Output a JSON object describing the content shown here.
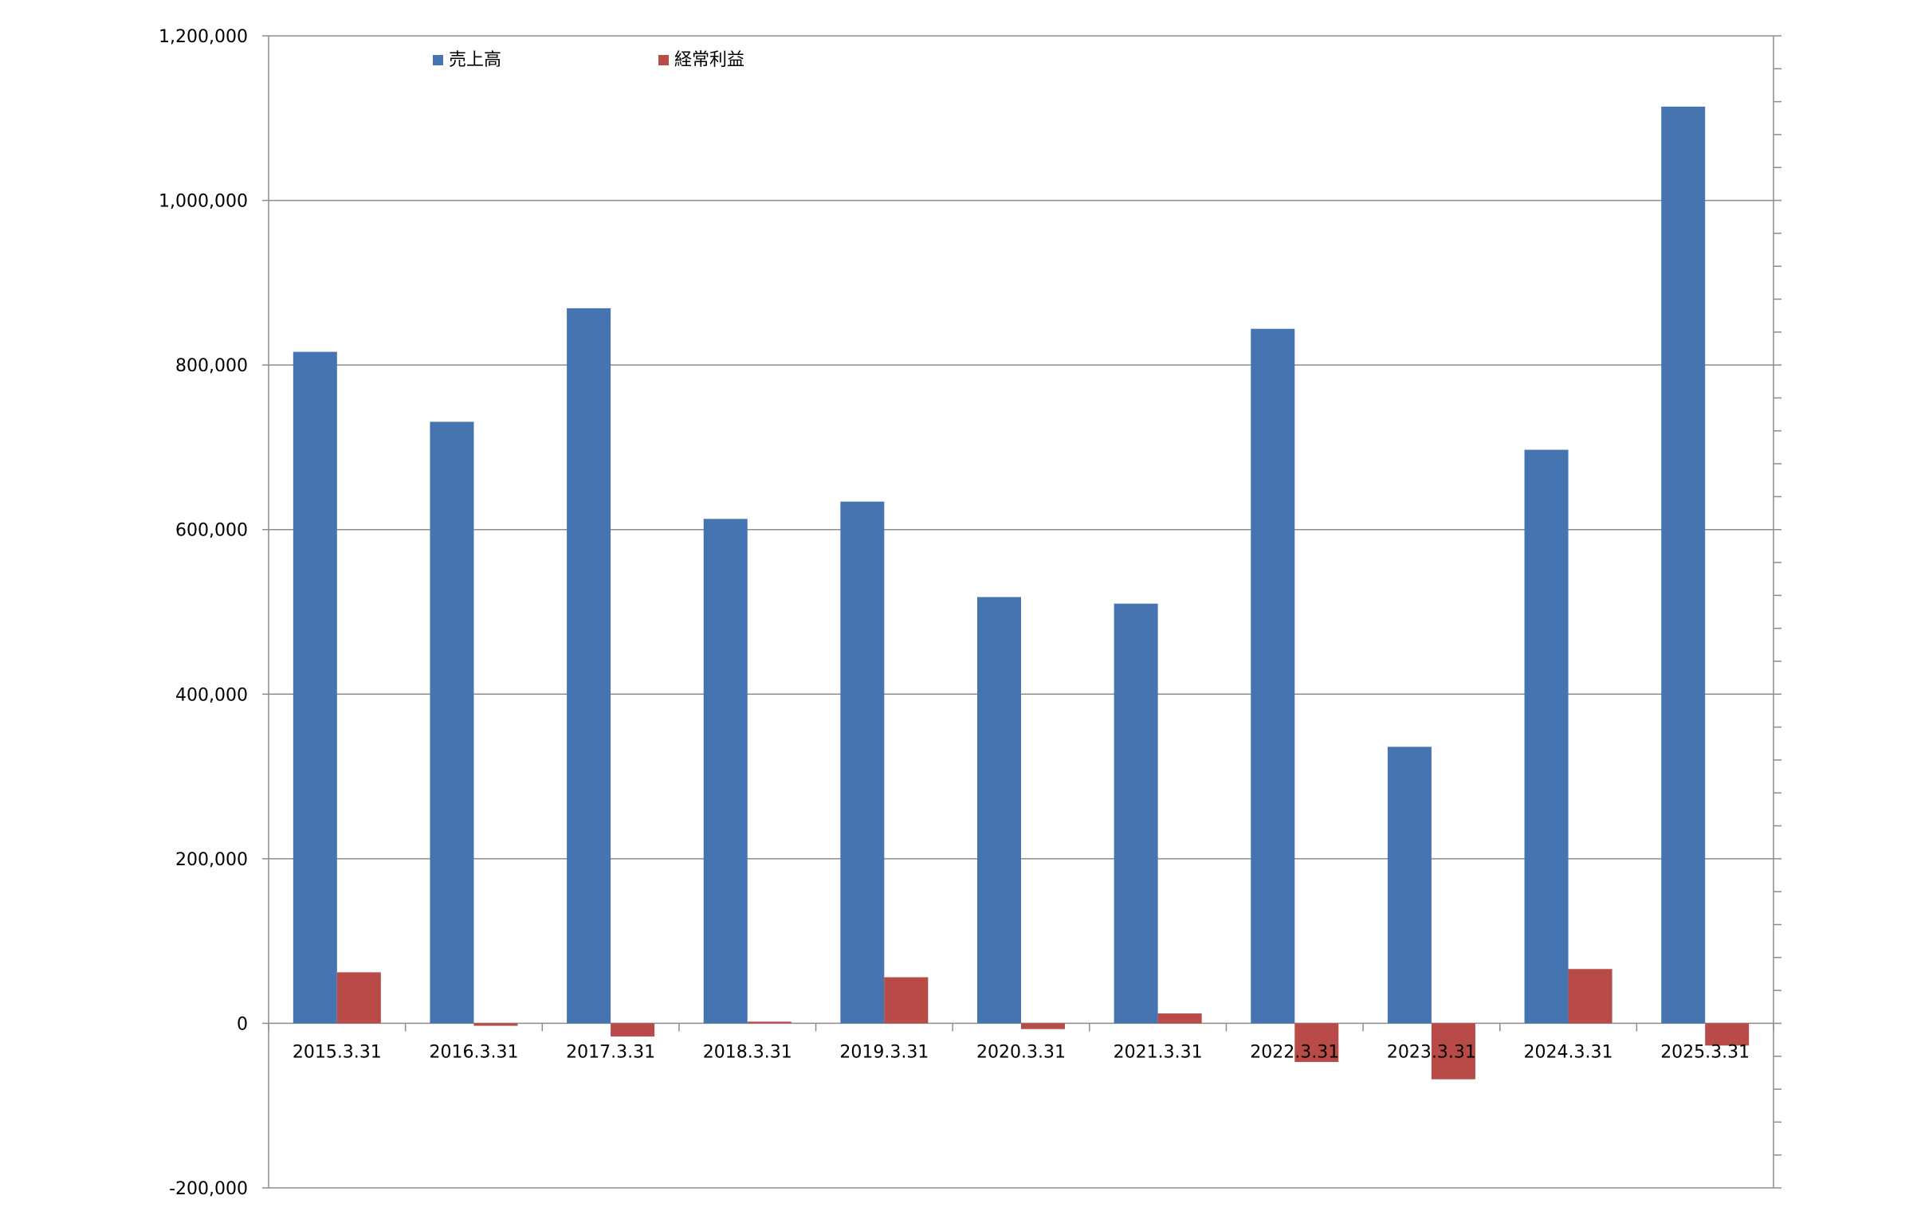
{
  "chart_data": {
    "type": "bar",
    "categories": [
      "2015.3.31",
      "2016.3.31",
      "2017.3.31",
      "2018.3.31",
      "2019.3.31",
      "2020.3.31",
      "2021.3.31",
      "2022.3.31",
      "2023.3.31",
      "2024.3.31",
      "2025.3.31"
    ],
    "series": [
      {
        "name": "売上高",
        "color": "#4674b1",
        "values": [
          816000,
          731000,
          869000,
          613000,
          634000,
          518000,
          510000,
          844000,
          336000,
          697000,
          1114000
        ]
      },
      {
        "name": "経常利益",
        "color": "#b84b47",
        "values": [
          62000,
          -3000,
          -16000,
          2000,
          56000,
          -7000,
          12000,
          -47000,
          -68000,
          66000,
          -27000
        ]
      }
    ],
    "ylim": [
      -200000,
      1200000
    ],
    "yticks": [
      {
        "value": 1200000,
        "label": "1,200,000"
      },
      {
        "value": 1000000,
        "label": "1,000,000"
      },
      {
        "value": 800000,
        "label": "800,000"
      },
      {
        "value": 600000,
        "label": "600,000"
      },
      {
        "value": 400000,
        "label": "400,000"
      },
      {
        "value": 200000,
        "label": "200,000"
      },
      {
        "value": 0,
        "label": "0"
      },
      {
        "value": -200000,
        "label": "-200,000",
        "color": "#ff0000"
      }
    ],
    "grid": true,
    "legend_position": "top-left",
    "title": "",
    "xlabel": "",
    "ylabel": ""
  }
}
